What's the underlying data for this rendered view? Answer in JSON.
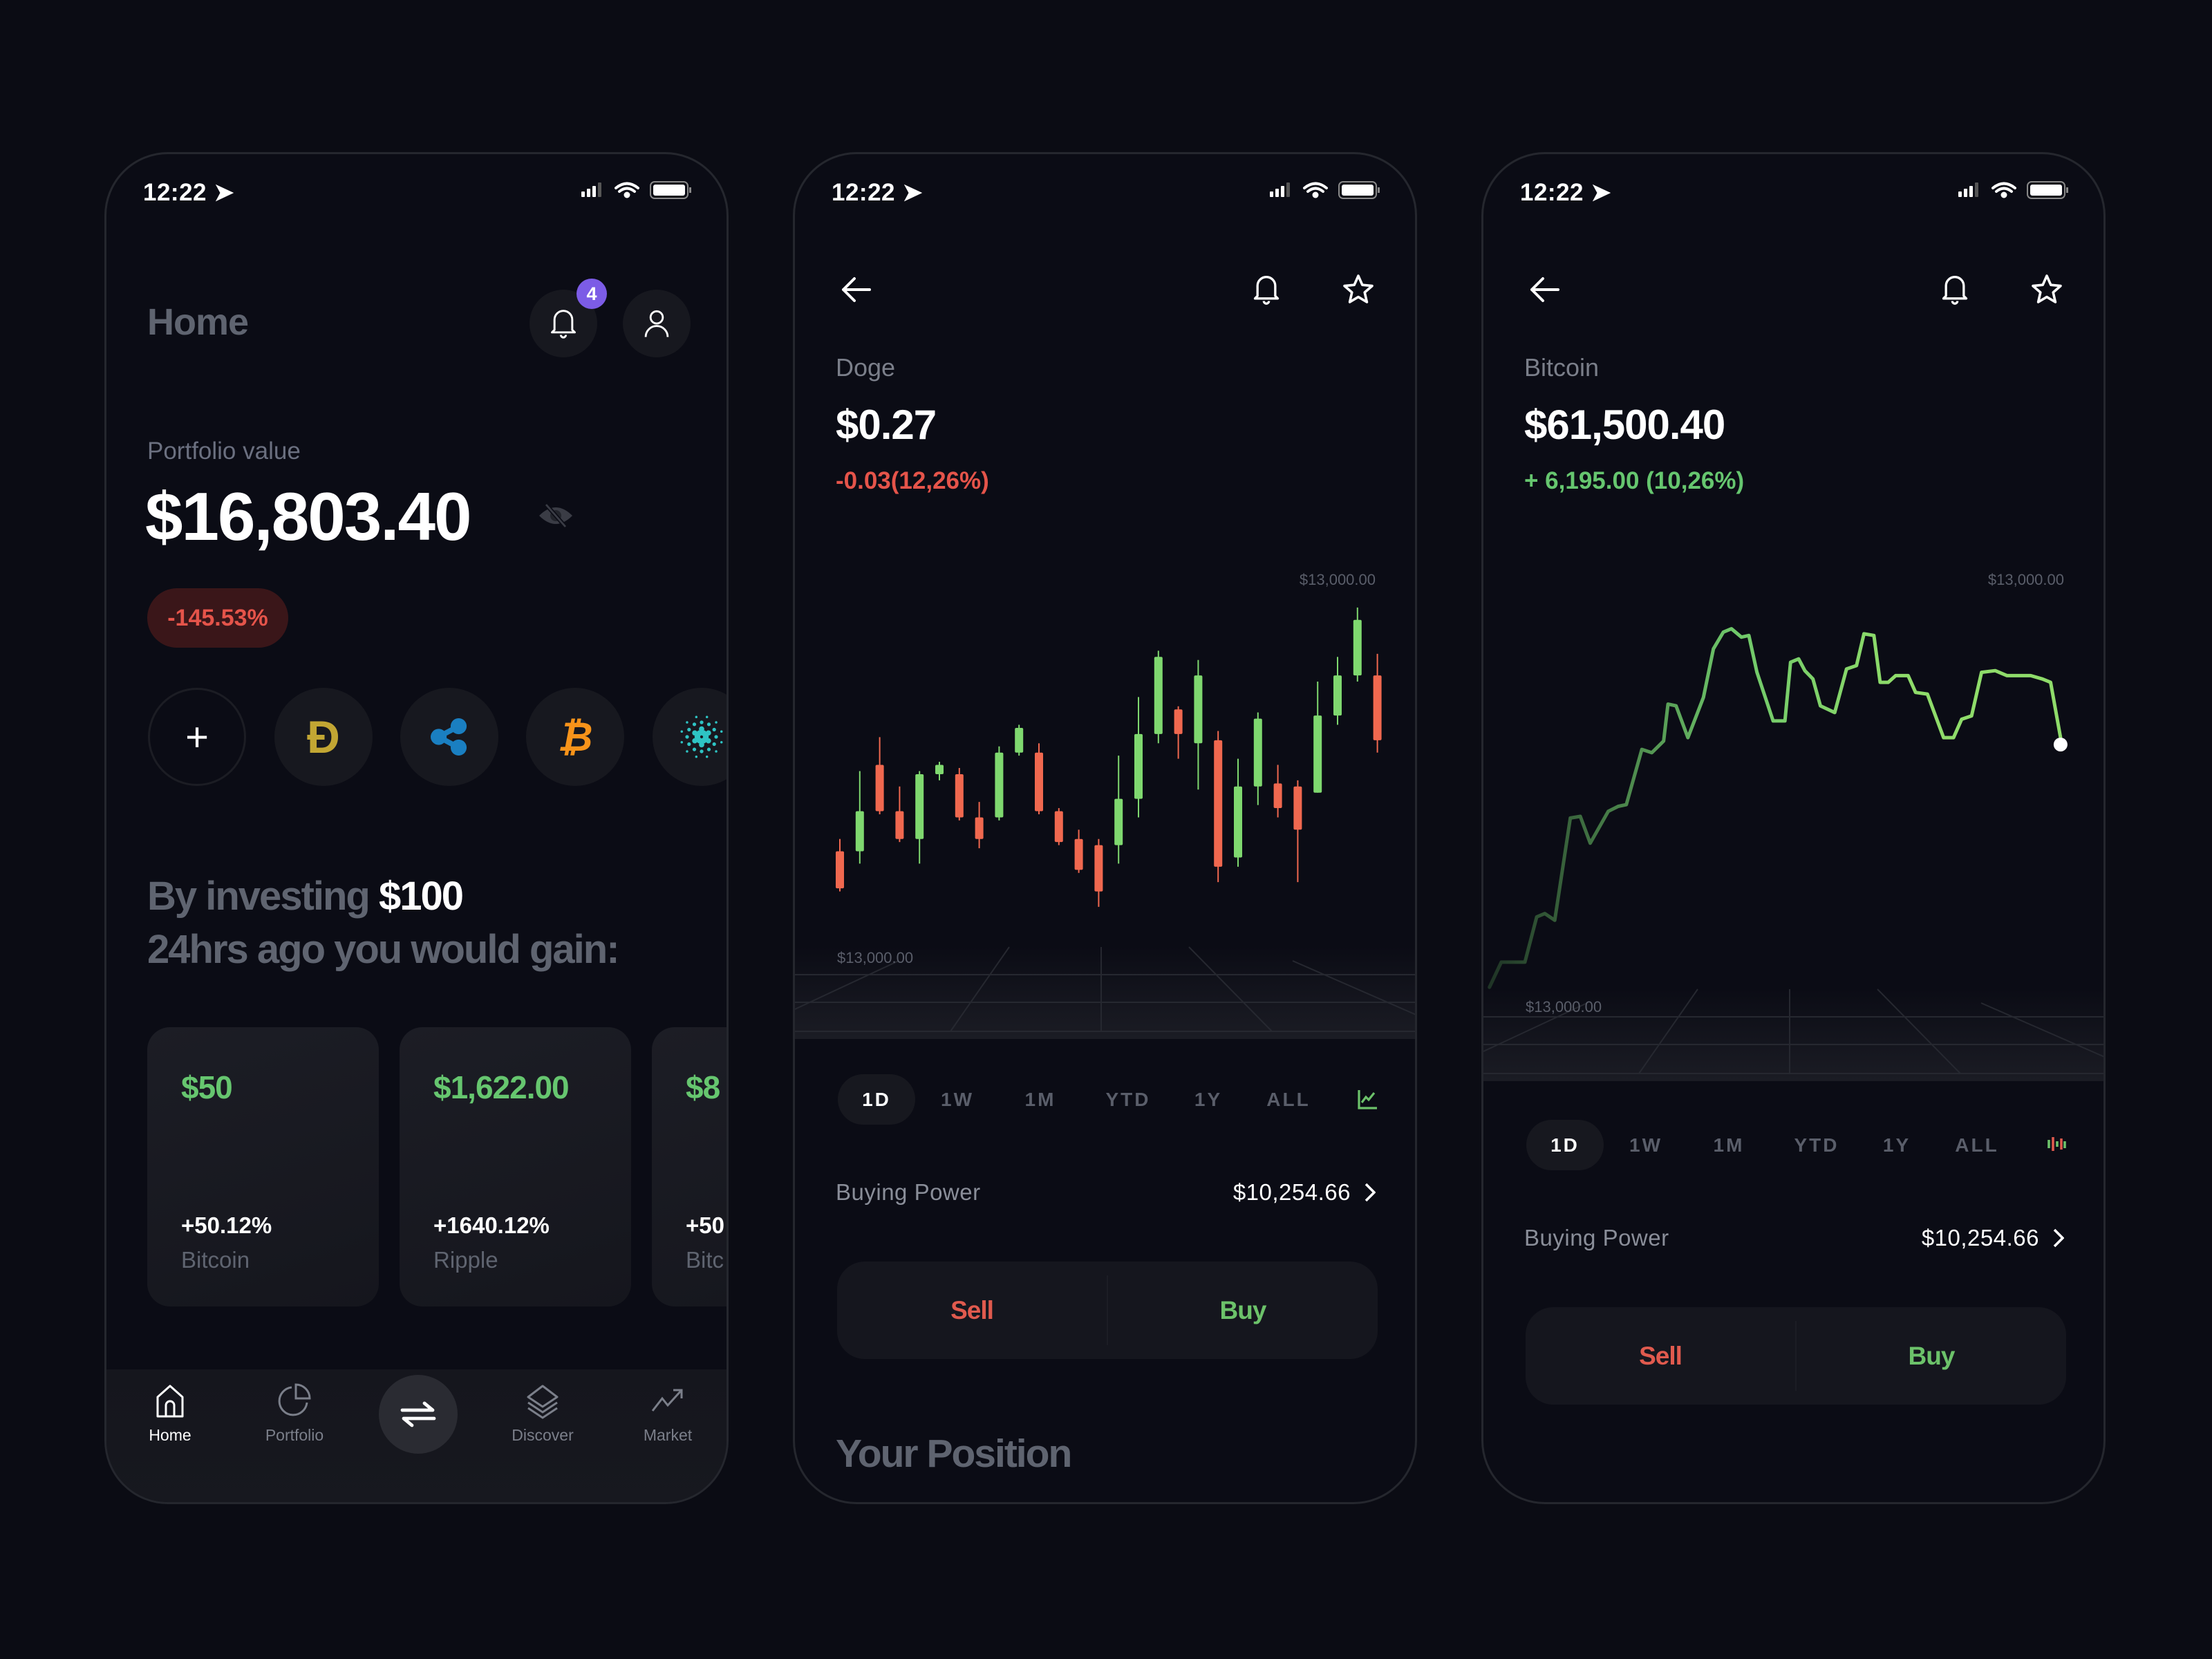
{
  "status_bar": {
    "time": "12:22",
    "icons": [
      "location-arrow-icon",
      "signal-icon",
      "wifi-icon",
      "battery-icon"
    ]
  },
  "colors": {
    "background": "#0b0c14",
    "green": "#66c66f",
    "red": "#e5544a",
    "badge": "#7c5ce6",
    "doge": "#c2a633",
    "xrp": "#1a7fc1",
    "bitcoin": "#f7931a",
    "cardano": "#2ec4c4"
  },
  "home": {
    "title": "Home",
    "notification_count": "4",
    "portfolio_label": "Portfolio value",
    "portfolio_value": "$16,803.40",
    "change_badge": "-145.53%",
    "coins": [
      {
        "name": "add",
        "glyph": "+",
        "icon": "plus-icon"
      },
      {
        "name": "Doge",
        "glyph": "Ð",
        "icon": "dogecoin-icon"
      },
      {
        "name": "Ripple",
        "glyph": "",
        "icon": "xrp-icon"
      },
      {
        "name": "Bitcoin",
        "glyph": "₿",
        "icon": "bitcoin-icon"
      },
      {
        "name": "Cardano",
        "glyph": "",
        "icon": "cardano-icon"
      }
    ],
    "invest_prefix": "By investing",
    "invest_amount": "$100",
    "invest_line2": "24hrs ago you would gain:",
    "cards": [
      {
        "gain": "$50",
        "percent": "+50.12%",
        "coin": "Bitcoin"
      },
      {
        "gain": "$1,622.00",
        "percent": "+1640.12%",
        "coin": "Ripple"
      },
      {
        "gain": "$8",
        "percent": "+50",
        "coin": "Bitc"
      }
    ],
    "nav": [
      {
        "label": "Home",
        "icon": "home-icon",
        "active": true
      },
      {
        "label": "Portfolio",
        "icon": "pie-chart-icon"
      },
      {
        "label": "",
        "icon": "swap-arrows-icon"
      },
      {
        "label": "Discover",
        "icon": "layers-icon"
      },
      {
        "label": "Market",
        "icon": "trend-up-icon"
      }
    ]
  },
  "doge": {
    "coin_name": "Doge",
    "price": "$0.27",
    "change": "-0.03(12,26%)",
    "time_tabs": [
      "1D",
      "1W",
      "1M",
      "YTD",
      "1Y",
      "ALL"
    ],
    "selected_tab": "1D",
    "chart_toggle_icon": "line-chart-icon",
    "buying_power_label": "Buying Power",
    "buying_power_value": "$10,254.66",
    "sell_label": "Sell",
    "buy_label": "Buy",
    "position_title": "Your Position"
  },
  "bitcoin": {
    "coin_name": "Bitcoin",
    "price": "$61,500.40",
    "change": "+ 6,195.00 (10,26%)",
    "time_tabs": [
      "1D",
      "1W",
      "1M",
      "YTD",
      "1Y",
      "ALL"
    ],
    "selected_tab": "1D",
    "chart_toggle_icon": "candlestick-chart-icon",
    "buying_power_label": "Buying Power",
    "buying_power_value": "$10,254.66",
    "sell_label": "Sell",
    "buy_label": "Buy"
  },
  "chart_data": [
    {
      "type": "candlestick",
      "y_labels": {
        "top": "$13,000.00",
        "bottom": "$13,000.00"
      },
      "grid": false,
      "up_color": "#7fd86f",
      "down_color": "#f0684f",
      "candles": [
        {
          "o": 54,
          "h": 58,
          "l": 41,
          "c": 42
        },
        {
          "o": 54,
          "h": 80,
          "l": 50,
          "c": 67
        },
        {
          "o": 82,
          "h": 91,
          "l": 66,
          "c": 67
        },
        {
          "o": 67,
          "h": 75,
          "l": 57,
          "c": 58
        },
        {
          "o": 58,
          "h": 80,
          "l": 50,
          "c": 79
        },
        {
          "o": 79,
          "h": 83,
          "l": 77,
          "c": 82
        },
        {
          "o": 79,
          "h": 81,
          "l": 64,
          "c": 65
        },
        {
          "o": 65,
          "h": 70,
          "l": 55,
          "c": 58
        },
        {
          "o": 65,
          "h": 88,
          "l": 64,
          "c": 86
        },
        {
          "o": 86,
          "h": 95,
          "l": 85,
          "c": 94
        },
        {
          "o": 86,
          "h": 89,
          "l": 66,
          "c": 67
        },
        {
          "o": 67,
          "h": 68,
          "l": 56,
          "c": 57
        },
        {
          "o": 58,
          "h": 61,
          "l": 47,
          "c": 48
        },
        {
          "o": 56,
          "h": 58,
          "l": 36,
          "c": 41
        },
        {
          "o": 56,
          "h": 85,
          "l": 50,
          "c": 71
        },
        {
          "o": 71,
          "h": 104,
          "l": 65,
          "c": 92
        },
        {
          "o": 92,
          "h": 119,
          "l": 89,
          "c": 117
        },
        {
          "o": 100,
          "h": 101,
          "l": 84,
          "c": 92
        },
        {
          "o": 89,
          "h": 116,
          "l": 74,
          "c": 111
        },
        {
          "o": 90,
          "h": 93,
          "l": 44,
          "c": 49
        },
        {
          "o": 52,
          "h": 84,
          "l": 49,
          "c": 75
        },
        {
          "o": 75,
          "h": 99,
          "l": 69,
          "c": 97
        },
        {
          "o": 76,
          "h": 82,
          "l": 65,
          "c": 68
        },
        {
          "o": 75,
          "h": 77,
          "l": 44,
          "c": 61
        },
        {
          "o": 73,
          "h": 109,
          "l": 73,
          "c": 98
        },
        {
          "o": 98,
          "h": 117,
          "l": 95,
          "c": 111
        },
        {
          "o": 111,
          "h": 133,
          "l": 109,
          "c": 129
        },
        {
          "o": 111,
          "h": 118,
          "l": 86,
          "c": 90
        }
      ]
    },
    {
      "type": "line",
      "y_labels": {
        "top": "$13,000.00",
        "bottom": "$13,000.00"
      },
      "grid": false,
      "color": "#8fdc6a",
      "x": [
        1.3,
        3.2,
        7.0,
        8.9,
        10.2,
        11.8,
        14.3,
        15.9,
        17.5,
        20.4,
        22.0,
        23.3,
        25.8,
        27.4,
        29.3,
        30.0,
        31.3,
        33.2,
        35.7,
        37.3,
        38.9,
        40.2,
        41.8,
        43.0,
        44.3,
        46.9,
        48.8,
        49.7,
        51.0,
        52.0,
        53.3,
        54.5,
        56.8,
        58.7,
        60.3,
        61.5,
        63.1,
        64.1,
        65.4,
        66.6,
        68.6,
        69.8,
        71.7,
        74.3,
        75.9,
        77.2,
        78.8,
        80.4,
        82.6,
        84.5,
        88.3,
        90.2,
        91.5,
        93.1
      ],
      "y": [
        21,
        28.5,
        28.5,
        42,
        43,
        41,
        71.5,
        72,
        64,
        73.5,
        75,
        75.5,
        92,
        91,
        94.5,
        105.5,
        105,
        95.5,
        107.5,
        122,
        127,
        128,
        125.5,
        126,
        115,
        100.5,
        100.5,
        118,
        119,
        115.5,
        113,
        105,
        103,
        116,
        117,
        126.5,
        126,
        112,
        112,
        114,
        114,
        109,
        108.5,
        95.5,
        95.5,
        101,
        102,
        115,
        115.5,
        114,
        114,
        113,
        112,
        95.5
      ]
    }
  ]
}
